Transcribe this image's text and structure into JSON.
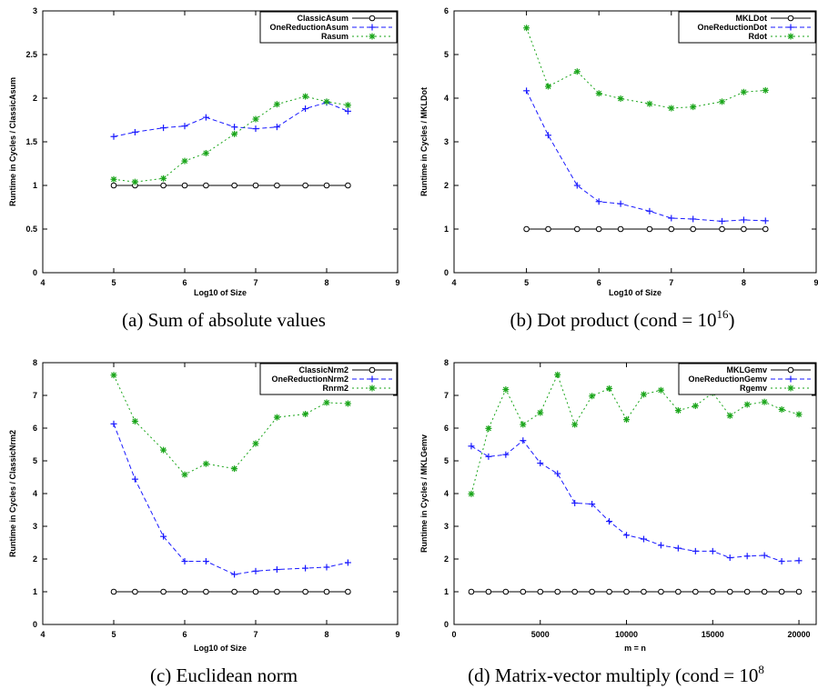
{
  "chart_data": [
    {
      "type": "line",
      "caption": "(a) Sum of absolute values",
      "xlabel": "Log10 of Size",
      "ylabel": "Runtime in Cycles / ClassicAsum",
      "xlim": [
        4,
        9
      ],
      "ylim": [
        0,
        3
      ],
      "xticks": [
        "4",
        "5",
        "6",
        "7",
        "8",
        "9"
      ],
      "yticks": [
        "0",
        "0.5",
        "1",
        "1.5",
        "2",
        "2.5",
        "3"
      ],
      "legend_position": "top-right",
      "series": [
        {
          "name": "ClassicAsum",
          "color": "#000000",
          "marker": "circle",
          "dash": "solid",
          "x": [
            5,
            5.3,
            5.7,
            6,
            6.3,
            6.7,
            7,
            7.3,
            7.7,
            8,
            8.3
          ],
          "y": [
            1,
            1,
            1,
            1,
            1,
            1,
            1,
            1,
            1,
            1,
            1
          ]
        },
        {
          "name": "OneReductionAsum",
          "color": "#1a1aff",
          "marker": "plus",
          "dash": "dashed",
          "x": [
            5,
            5.3,
            5.7,
            6,
            6.3,
            6.7,
            7,
            7.3,
            7.7,
            8,
            8.3
          ],
          "y": [
            1.56,
            1.61,
            1.66,
            1.68,
            1.78,
            1.67,
            1.65,
            1.67,
            1.88,
            1.95,
            1.85
          ]
        },
        {
          "name": "Rasum",
          "color": "#1aa51a",
          "marker": "star",
          "dash": "dotted",
          "x": [
            5,
            5.3,
            5.7,
            6,
            6.3,
            6.7,
            7,
            7.3,
            7.7,
            8,
            8.3
          ],
          "y": [
            1.07,
            1.04,
            1.08,
            1.28,
            1.37,
            1.59,
            1.76,
            1.93,
            2.02,
            1.96,
            1.92
          ]
        }
      ]
    },
    {
      "type": "line",
      "caption": "(b) Dot product (cond = 10",
      "caption_sup": "16",
      "caption_end": ")",
      "xlabel": "Log10 of Size",
      "ylabel": "Runtime in Cycles / MKLDot",
      "xlim": [
        4,
        9
      ],
      "ylim": [
        0,
        6
      ],
      "xticks": [
        "4",
        "5",
        "6",
        "7",
        "8",
        "9"
      ],
      "yticks": [
        "0",
        "1",
        "2",
        "3",
        "4",
        "5",
        "6"
      ],
      "legend_position": "top-right",
      "series": [
        {
          "name": "MKLDot",
          "color": "#000000",
          "marker": "circle",
          "dash": "solid",
          "x": [
            5,
            5.3,
            5.7,
            6,
            6.3,
            6.7,
            7,
            7.3,
            7.7,
            8,
            8.3
          ],
          "y": [
            1,
            1,
            1,
            1,
            1,
            1,
            1,
            1,
            1,
            1,
            1
          ]
        },
        {
          "name": "OneReductionDot",
          "color": "#1a1aff",
          "marker": "plus",
          "dash": "dashed",
          "x": [
            5,
            5.3,
            5.7,
            6,
            6.3,
            6.7,
            7,
            7.3,
            7.7,
            8,
            8.3
          ],
          "y": [
            4.17,
            3.15,
            2.0,
            1.63,
            1.58,
            1.41,
            1.25,
            1.23,
            1.18,
            1.21,
            1.19
          ]
        },
        {
          "name": "Rdot",
          "color": "#1aa51a",
          "marker": "star",
          "dash": "dotted",
          "x": [
            5,
            5.3,
            5.7,
            6,
            6.3,
            6.7,
            7,
            7.3,
            7.7,
            8,
            8.3
          ],
          "y": [
            5.61,
            4.27,
            4.61,
            4.11,
            3.99,
            3.87,
            3.77,
            3.8,
            3.92,
            4.14,
            4.18
          ]
        }
      ]
    },
    {
      "type": "line",
      "caption": "(c) Euclidean norm",
      "xlabel": "Log10 of Size",
      "ylabel": "Runtime in Cycles / ClassicNrm2",
      "xlim": [
        4,
        9
      ],
      "ylim": [
        0,
        8
      ],
      "xticks": [
        "4",
        "5",
        "6",
        "7",
        "8",
        "9"
      ],
      "yticks": [
        "0",
        "1",
        "2",
        "3",
        "4",
        "5",
        "6",
        "7",
        "8"
      ],
      "legend_position": "top-right",
      "series": [
        {
          "name": "ClassicNrm2",
          "color": "#000000",
          "marker": "circle",
          "dash": "solid",
          "x": [
            5,
            5.3,
            5.7,
            6,
            6.3,
            6.7,
            7,
            7.3,
            7.7,
            8,
            8.3
          ],
          "y": [
            1,
            1,
            1,
            1,
            1,
            1,
            1,
            1,
            1,
            1,
            1
          ]
        },
        {
          "name": "OneReductionNrm2",
          "color": "#1a1aff",
          "marker": "plus",
          "dash": "dashed",
          "x": [
            5,
            5.3,
            5.7,
            6,
            6.3,
            6.7,
            7,
            7.3,
            7.7,
            8,
            8.3
          ],
          "y": [
            6.13,
            4.44,
            2.69,
            1.93,
            1.93,
            1.53,
            1.63,
            1.68,
            1.72,
            1.75,
            1.89
          ]
        },
        {
          "name": "Rnrm2",
          "color": "#1aa51a",
          "marker": "star",
          "dash": "dotted",
          "x": [
            5,
            5.3,
            5.7,
            6,
            6.3,
            6.7,
            7,
            7.3,
            7.7,
            8,
            8.3
          ],
          "y": [
            7.62,
            6.21,
            5.33,
            4.58,
            4.91,
            4.76,
            5.53,
            6.33,
            6.43,
            6.78,
            6.75
          ]
        }
      ]
    },
    {
      "type": "line",
      "caption": "(d) Matrix-vector multiply (cond = 10",
      "caption_sup": "8",
      "caption_end": "",
      "xlabel": "m = n",
      "ylabel": "Runtime in Cycles / MKLGemv",
      "xlim": [
        0,
        21000
      ],
      "ylim": [
        0,
        8
      ],
      "xticks": [
        "0",
        "5000",
        "10000",
        "15000",
        "20000"
      ],
      "xtick_values": [
        0,
        5000,
        10000,
        15000,
        20000
      ],
      "yticks": [
        "0",
        "1",
        "2",
        "3",
        "4",
        "5",
        "6",
        "7",
        "8"
      ],
      "legend_position": "top-right",
      "series": [
        {
          "name": "MKLGemv",
          "color": "#000000",
          "marker": "circle",
          "dash": "solid",
          "x": [
            1000,
            2000,
            3000,
            4000,
            5000,
            6000,
            7000,
            8000,
            9000,
            10000,
            11000,
            12000,
            13000,
            14000,
            15000,
            16000,
            17000,
            18000,
            19000,
            20000
          ],
          "y": [
            1,
            1,
            1,
            1,
            1,
            1,
            1,
            1,
            1,
            1,
            1,
            1,
            1,
            1,
            1,
            1,
            1,
            1,
            1,
            1
          ]
        },
        {
          "name": "OneReductionGemv",
          "color": "#1a1aff",
          "marker": "plus",
          "dash": "dashed",
          "x": [
            1000,
            2000,
            3000,
            4000,
            5000,
            6000,
            7000,
            8000,
            9000,
            10000,
            11000,
            12000,
            13000,
            14000,
            15000,
            16000,
            17000,
            18000,
            19000,
            20000
          ],
          "y": [
            5.45,
            5.13,
            5.19,
            5.62,
            4.93,
            4.61,
            3.71,
            3.68,
            3.15,
            2.73,
            2.61,
            2.42,
            2.33,
            2.24,
            2.24,
            2.04,
            2.09,
            2.11,
            1.93,
            1.95
          ]
        },
        {
          "name": "Rgemv",
          "color": "#1aa51a",
          "marker": "star",
          "dash": "dotted",
          "x": [
            1000,
            2000,
            3000,
            4000,
            5000,
            6000,
            7000,
            8000,
            9000,
            10000,
            11000,
            12000,
            13000,
            14000,
            15000,
            16000,
            17000,
            18000,
            19000,
            20000
          ],
          "y": [
            3.99,
            5.99,
            7.18,
            6.11,
            6.47,
            7.63,
            6.11,
            6.98,
            7.21,
            6.26,
            7.03,
            7.16,
            6.54,
            6.68,
            7.08,
            6.38,
            6.72,
            6.8,
            6.57,
            6.42
          ]
        }
      ]
    }
  ]
}
